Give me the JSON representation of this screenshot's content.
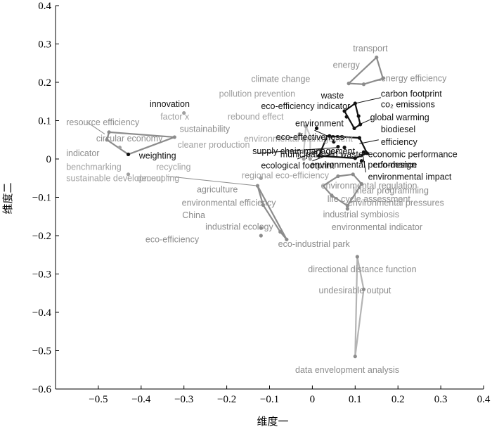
{
  "chart_data": {
    "type": "scatter",
    "xlabel": "维度一",
    "ylabel": "维度二",
    "xlim": [
      -0.6,
      0.4
    ],
    "ylim": [
      -0.6,
      0.4
    ],
    "xticks": [
      -0.5,
      -0.4,
      -0.3,
      -0.2,
      -0.1,
      0,
      0.1,
      0.2,
      0.3,
      0.4
    ],
    "yticks": [
      -0.6,
      -0.5,
      -0.4,
      -0.3,
      -0.2,
      -0.1,
      0,
      0.1,
      0.2,
      0.3,
      0.4
    ],
    "xtick_labels": [
      "−0.5",
      "−0.4",
      "−0.3",
      "−0.2",
      "−0.1",
      "0",
      "0.1",
      "0.2",
      "0.3",
      "0.4"
    ],
    "ytick_labels": [
      "−0.6",
      "−0.5",
      "−0.4",
      "−0.3",
      "−0.2",
      "−0.1",
      "0",
      "0.1",
      "0.2",
      "0.3",
      "0.4"
    ],
    "grid": false,
    "legend": "none",
    "hulls": [
      {
        "color": "#8c8c8c",
        "points": [
          [
            0.085,
            0.197
          ],
          [
            0.15,
            0.265
          ],
          [
            0.165,
            0.21
          ],
          [
            0.12,
            0.195
          ]
        ]
      },
      {
        "color": "#8c8c8c",
        "points": [
          [
            -0.475,
            0.07
          ],
          [
            -0.322,
            0.057
          ],
          [
            -0.43,
            0.012
          ],
          [
            -0.48,
            0.05
          ]
        ]
      },
      {
        "color": "#111111",
        "points": [
          [
            0.075,
            0.125
          ],
          [
            0.1,
            0.145
          ],
          [
            0.112,
            0.09
          ],
          [
            0.098,
            0.08
          ]
        ]
      },
      {
        "color": "#111111",
        "points": [
          [
            0.035,
            0.06
          ],
          [
            0.11,
            0.055
          ],
          [
            0.128,
            0.015
          ],
          [
            0.1,
            0.002
          ],
          [
            0.015,
            0.008
          ]
        ]
      },
      {
        "color": "#8c8c8c",
        "points": [
          [
            0.025,
            -0.07
          ],
          [
            0.06,
            -0.045
          ],
          [
            0.095,
            -0.04
          ],
          [
            0.115,
            -0.065
          ],
          [
            0.082,
            -0.122
          ],
          [
            0.045,
            -0.095
          ]
        ]
      },
      {
        "color": "#8c8c8c",
        "points": [
          [
            -0.128,
            -0.07
          ],
          [
            -0.06,
            -0.21
          ],
          [
            -0.075,
            -0.19
          ],
          [
            -0.115,
            -0.12
          ]
        ]
      },
      {
        "color": "#b4b4b4",
        "points": [
          [
            0.105,
            -0.255
          ],
          [
            0.12,
            -0.34
          ],
          [
            0.1,
            -0.515
          ]
        ]
      },
      {
        "color": "#c8c8c8",
        "points": [
          [
            -0.015,
            0.085
          ],
          [
            -0.005,
            0.06
          ],
          [
            -0.005,
            0.0
          ],
          [
            -0.02,
            0.02
          ]
        ]
      }
    ],
    "points": [
      {
        "label": "transport",
        "x": 0.15,
        "y": 0.265,
        "color": "#8c8c8c",
        "tx": 0.095,
        "ty": 0.288,
        "anchor": "start"
      },
      {
        "label": "energy",
        "x": 0.12,
        "y": 0.195,
        "color": "#8c8c8c",
        "tx": 0.048,
        "ty": 0.245,
        "anchor": "start"
      },
      {
        "label": "energy efficiency",
        "x": 0.165,
        "y": 0.21,
        "color": "#8c8c8c",
        "tx": 0.16,
        "ty": 0.21,
        "anchor": "start"
      },
      {
        "label": "climate change",
        "x": 0.085,
        "y": 0.197,
        "color": "#8c8c8c",
        "tx": -0.143,
        "ty": 0.208,
        "anchor": "start"
      },
      {
        "label": "pollution prevention",
        "x": -0.015,
        "y": 0.085,
        "color": "#a0a0a0",
        "tx": -0.218,
        "ty": 0.17,
        "anchor": "start"
      },
      {
        "label": "innovation",
        "x": 0.01,
        "y": 0.08,
        "color": "#111111",
        "tx": -0.38,
        "ty": 0.143,
        "anchor": "start"
      },
      {
        "label": "waste",
        "x": 0.075,
        "y": 0.125,
        "color": "#111111",
        "tx": 0.02,
        "ty": 0.165,
        "anchor": "start"
      },
      {
        "label": "carbon footprint",
        "x": 0.1,
        "y": 0.145,
        "color": "#111111",
        "tx": 0.16,
        "ty": 0.17,
        "anchor": "start"
      },
      {
        "label": "co₂  emissions",
        "x": 0.108,
        "y": 0.112,
        "color": "#111111",
        "tx": 0.16,
        "ty": 0.142,
        "anchor": "start"
      },
      {
        "label": "eco-efficiency indicator",
        "x": 0.08,
        "y": 0.11,
        "color": "#111111",
        "tx": -0.12,
        "ty": 0.138,
        "anchor": "start"
      },
      {
        "label": "factor x",
        "x": -0.3,
        "y": 0.12,
        "color": "#a0a0a0",
        "tx": -0.355,
        "ty": 0.11,
        "anchor": "start"
      },
      {
        "label": "rebound effect",
        "x": -0.03,
        "y": 0.065,
        "color": "#a0a0a0",
        "tx": -0.198,
        "ty": 0.11,
        "anchor": "start"
      },
      {
        "label": "global warming",
        "x": 0.112,
        "y": 0.09,
        "color": "#111111",
        "tx": 0.135,
        "ty": 0.108,
        "anchor": "start"
      },
      {
        "label": "resource efficiency",
        "x": -0.475,
        "y": 0.07,
        "color": "#8c8c8c",
        "tx": -0.575,
        "ty": 0.095,
        "anchor": "start"
      },
      {
        "label": "environment",
        "x": 0.04,
        "y": 0.06,
        "color": "#111111",
        "tx": -0.04,
        "ty": 0.093,
        "anchor": "start"
      },
      {
        "label": "sustainability",
        "x": -0.322,
        "y": 0.057,
        "color": "#8c8c8c",
        "tx": -0.31,
        "ty": 0.078,
        "anchor": "start"
      },
      {
        "label": "biodiesel",
        "x": 0.098,
        "y": 0.08,
        "color": "#111111",
        "tx": 0.16,
        "ty": 0.077,
        "anchor": "start"
      },
      {
        "label": "circular economy",
        "x": -0.48,
        "y": 0.05,
        "color": "#8c8c8c",
        "tx": -0.505,
        "ty": 0.053,
        "anchor": "start"
      },
      {
        "label": "environmental management",
        "x": -0.02,
        "y": 0.05,
        "color": "#a0a0a0",
        "tx": -0.16,
        "ty": 0.052,
        "anchor": "start"
      },
      {
        "label": "eco-effectiveness",
        "x": 0.05,
        "y": 0.045,
        "color": "#111111",
        "tx": -0.085,
        "ty": 0.057,
        "anchor": "start"
      },
      {
        "label": "efficiency",
        "x": 0.11,
        "y": 0.055,
        "color": "#111111",
        "tx": 0.16,
        "ty": 0.044,
        "anchor": "start"
      },
      {
        "label": "cleaner production",
        "x": -0.02,
        "y": 0.02,
        "color": "#a0a0a0",
        "tx": -0.315,
        "ty": 0.037,
        "anchor": "start"
      },
      {
        "label": "supply chain management",
        "x": 0.06,
        "y": 0.032,
        "color": "#111111",
        "tx": -0.14,
        "ty": 0.02,
        "anchor": "start"
      },
      {
        "label": "municipal solid waste",
        "x": 0.075,
        "y": 0.03,
        "color": "#111111",
        "tx": -0.075,
        "ty": 0.012,
        "anchor": "start"
      },
      {
        "label": "economic performance",
        "x": 0.12,
        "y": 0.018,
        "color": "#111111",
        "tx": 0.13,
        "ty": 0.012,
        "anchor": "start"
      },
      {
        "label": "indicator",
        "x": -0.43,
        "y": 0.012,
        "color": "#8c8c8c",
        "tx": -0.575,
        "ty": 0.015,
        "anchor": "start"
      },
      {
        "label": "weighting",
        "x": -0.43,
        "y": 0.012,
        "color": "#111111",
        "tx": -0.405,
        "ty": 0.008,
        "anchor": "start"
      },
      {
        "label": "environmental performance",
        "x": 0.1,
        "y": 0.002,
        "color": "#111111",
        "tx": -0.005,
        "ty": -0.016,
        "anchor": "start"
      },
      {
        "label": "eco-design",
        "x": 0.128,
        "y": 0.015,
        "color": "#111111",
        "tx": 0.142,
        "ty": -0.016,
        "anchor": "start"
      },
      {
        "label": "ecological footprint",
        "x": 0.015,
        "y": 0.008,
        "color": "#111111",
        "tx": -0.12,
        "ty": -0.017,
        "anchor": "start"
      },
      {
        "label": "benchmarking",
        "x": -0.45,
        "y": 0.03,
        "color": "#a0a0a0",
        "tx": -0.575,
        "ty": -0.021,
        "anchor": "start"
      },
      {
        "label": "recycling",
        "x": -0.02,
        "y": 0.0,
        "color": "#a0a0a0",
        "tx": -0.365,
        "ty": -0.021,
        "anchor": "start"
      },
      {
        "label": "regional eco-efficiency",
        "x": -0.005,
        "y": 0.0,
        "color": "#a0a0a0",
        "tx": -0.165,
        "ty": -0.043,
        "anchor": "start"
      },
      {
        "label": "environmental impact",
        "x": 0.115,
        "y": -0.005,
        "color": "#111111",
        "tx": 0.13,
        "ty": -0.047,
        "anchor": "start"
      },
      {
        "label": "sustainable development",
        "x": -0.43,
        "y": -0.04,
        "color": "#a0a0a0",
        "tx": -0.575,
        "ty": -0.05,
        "anchor": "start"
      },
      {
        "label": "decoupling",
        "x": -0.12,
        "y": -0.05,
        "color": "#a0a0a0",
        "tx": -0.41,
        "ty": -0.05,
        "anchor": "start"
      },
      {
        "label": "environmental regulation",
        "x": 0.06,
        "y": -0.045,
        "color": "#8c8c8c",
        "tx": 0.02,
        "ty": -0.07,
        "anchor": "start"
      },
      {
        "label": "agriculture",
        "x": -0.128,
        "y": -0.07,
        "color": "#8c8c8c",
        "tx": -0.27,
        "ty": -0.08,
        "anchor": "start"
      },
      {
        "label": "linear programming",
        "x": 0.115,
        "y": -0.065,
        "color": "#8c8c8c",
        "tx": 0.095,
        "ty": -0.083,
        "anchor": "start"
      },
      {
        "label": "life cycle assessment",
        "x": 0.045,
        "y": -0.095,
        "color": "#8c8c8c",
        "tx": 0.035,
        "ty": -0.105,
        "anchor": "start"
      },
      {
        "label": "environmental efficiency",
        "x": -0.115,
        "y": -0.12,
        "color": "#8c8c8c",
        "tx": -0.305,
        "ty": -0.115,
        "anchor": "start"
      },
      {
        "label": "environmental pressures",
        "x": 0.095,
        "y": -0.04,
        "color": "#8c8c8c",
        "tx": 0.083,
        "ty": -0.115,
        "anchor": "start"
      },
      {
        "label": "China",
        "x": -0.12,
        "y": -0.18,
        "color": "#8c8c8c",
        "tx": -0.304,
        "ty": -0.147,
        "anchor": "start"
      },
      {
        "label": "industrial symbiosis",
        "x": 0.082,
        "y": -0.122,
        "color": "#8c8c8c",
        "tx": 0.025,
        "ty": -0.145,
        "anchor": "start"
      },
      {
        "label": "industrial ecology",
        "x": -0.075,
        "y": -0.19,
        "color": "#8c8c8c",
        "tx": -0.25,
        "ty": -0.177,
        "anchor": "start"
      },
      {
        "label": "environmental indicator",
        "x": 0.082,
        "y": -0.13,
        "color": "#8c8c8c",
        "tx": 0.045,
        "ty": -0.178,
        "anchor": "start"
      },
      {
        "label": "eco-efficiency",
        "x": -0.12,
        "y": -0.2,
        "color": "#8c8c8c",
        "tx": -0.39,
        "ty": -0.21,
        "anchor": "start"
      },
      {
        "label": "eco-industrial park",
        "x": -0.06,
        "y": -0.21,
        "color": "#8c8c8c",
        "tx": -0.08,
        "ty": -0.222,
        "anchor": "start"
      },
      {
        "label": "directional distance function",
        "x": 0.105,
        "y": -0.255,
        "color": "#8c8c8c",
        "tx": -0.01,
        "ty": -0.288,
        "anchor": "start"
      },
      {
        "label": "undesirable output",
        "x": 0.12,
        "y": -0.34,
        "color": "#8c8c8c",
        "tx": 0.015,
        "ty": -0.343,
        "anchor": "start"
      },
      {
        "label": "data envelopment analysis",
        "x": 0.1,
        "y": -0.515,
        "color": "#8c8c8c",
        "tx": -0.04,
        "ty": -0.55,
        "anchor": "start"
      }
    ],
    "leaders": [
      {
        "color": "#111111",
        "from": [
          -0.13,
          0.015
        ],
        "to": [
          0.062,
          0.03
        ]
      },
      {
        "color": "#111111",
        "from": [
          0.005,
          0.075
        ],
        "to": [
          0.045,
          0.055
        ]
      },
      {
        "color": "#111111",
        "from": [
          0.0,
          -0.005
        ],
        "to": [
          0.06,
          0.02
        ]
      },
      {
        "color": "#111111",
        "from": [
          0.125,
          -0.035
        ],
        "to": [
          0.118,
          0.01
        ]
      },
      {
        "color": "#111111",
        "from": [
          0.155,
          0.05
        ],
        "to": [
          0.11,
          0.04
        ]
      },
      {
        "color": "#111111",
        "from": [
          0.16,
          0.16
        ],
        "to": [
          0.1,
          0.145
        ]
      },
      {
        "color": "#111111",
        "from": [
          0.14,
          0.105
        ],
        "to": [
          0.11,
          0.09
        ]
      },
      {
        "color": "#8c8c8c",
        "from": [
          -0.34,
          -0.045
        ],
        "to": [
          -0.128,
          -0.07
        ]
      },
      {
        "color": "#8c8c8c",
        "from": [
          -0.485,
          0.065
        ],
        "to": [
          -0.525,
          0.095
        ]
      },
      {
        "color": "#8c8c8c",
        "from": [
          0.16,
          0.205
        ],
        "to": [
          0.15,
          0.205
        ]
      },
      {
        "color": "#111111",
        "from": [
          -0.035,
          0.0
        ],
        "to": [
          0.02,
          0.025
        ]
      }
    ]
  }
}
